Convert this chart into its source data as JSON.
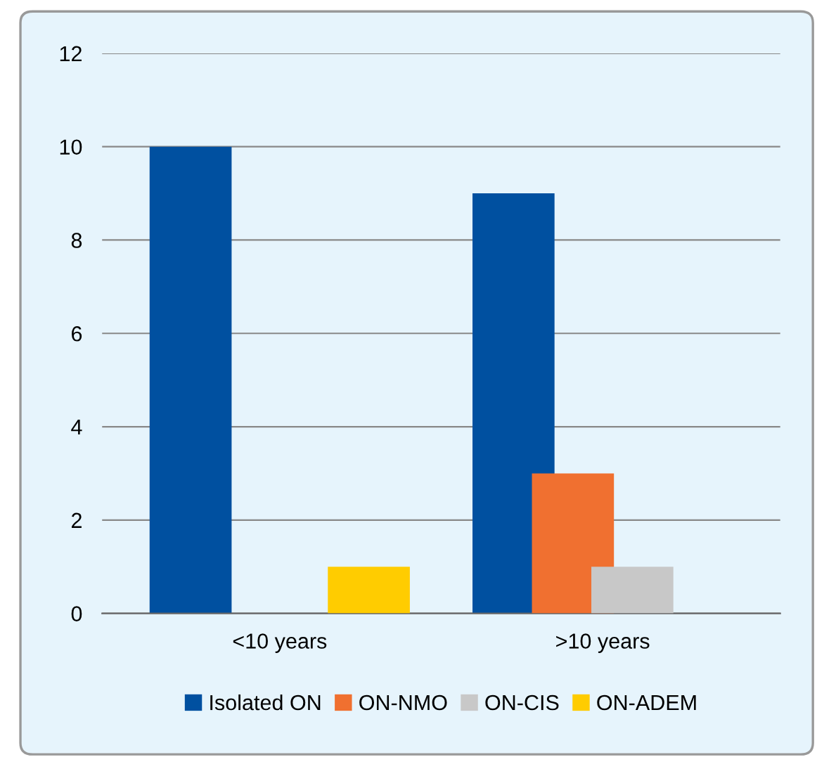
{
  "chart_data": {
    "type": "bar",
    "categories": [
      "<10 years",
      ">10 years"
    ],
    "series": [
      {
        "name": "Isolated ON",
        "color": "#0050a0",
        "values": [
          10,
          9
        ]
      },
      {
        "name": "ON-NMO",
        "color": "#f07030",
        "values": [
          0,
          3
        ]
      },
      {
        "name": "ON-CIS",
        "color": "#c8c8c8",
        "values": [
          0,
          1
        ]
      },
      {
        "name": "ON-ADEM",
        "color": "#ffcc00",
        "values": [
          1,
          0
        ]
      }
    ],
    "ylim": [
      0,
      12
    ],
    "yticks": [
      0,
      2,
      4,
      6,
      8,
      10,
      12
    ],
    "grid": "y",
    "legend": "bottom"
  }
}
